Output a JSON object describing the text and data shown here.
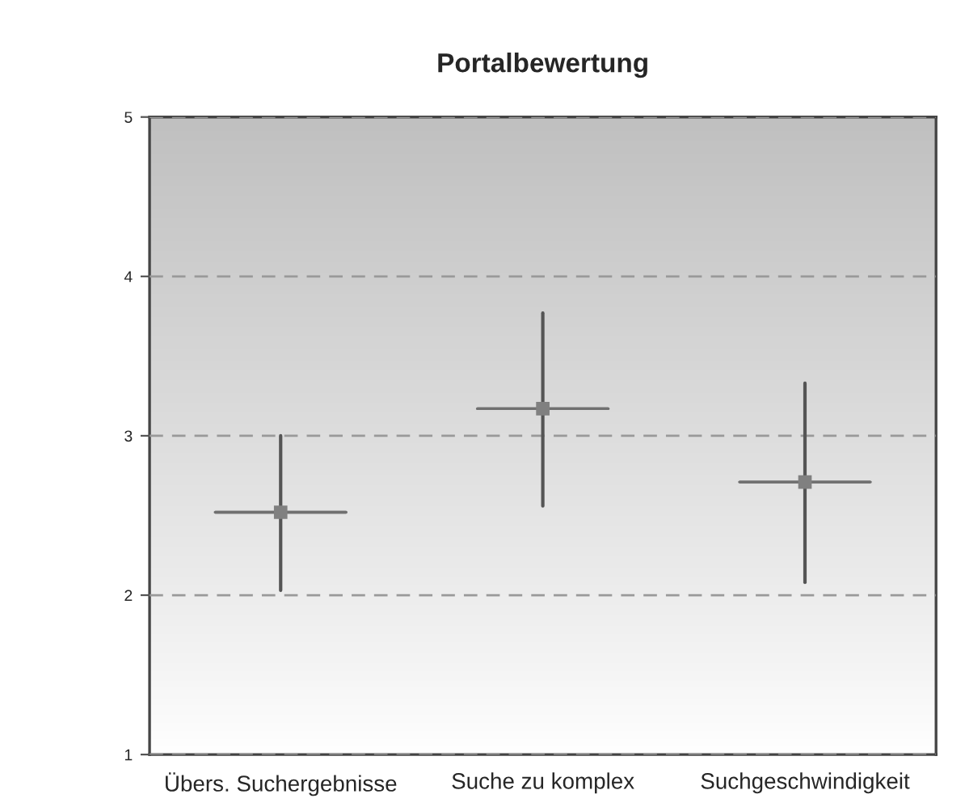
{
  "chart_data": {
    "type": "box",
    "title": "Portalbewertung",
    "categories": [
      "Übers. Suchergebnisse",
      "Suche zu komplex",
      "Suchgeschwindigkeit"
    ],
    "boxes": [
      {
        "low": 2.03,
        "q1": 2.52,
        "median": 2.52,
        "q3": 2.52,
        "high": 3.0,
        "mean": 2.52
      },
      {
        "low": 2.56,
        "q1": 3.17,
        "median": 3.17,
        "q3": 3.17,
        "high": 3.77,
        "mean": 3.17
      },
      {
        "low": 2.08,
        "q1": 2.71,
        "median": 2.71,
        "q3": 2.71,
        "high": 3.33,
        "mean": 2.71
      }
    ],
    "ylim": [
      1,
      5
    ],
    "yticks": [
      1,
      2,
      3,
      4,
      5
    ],
    "grid": "y",
    "marker": "square"
  }
}
